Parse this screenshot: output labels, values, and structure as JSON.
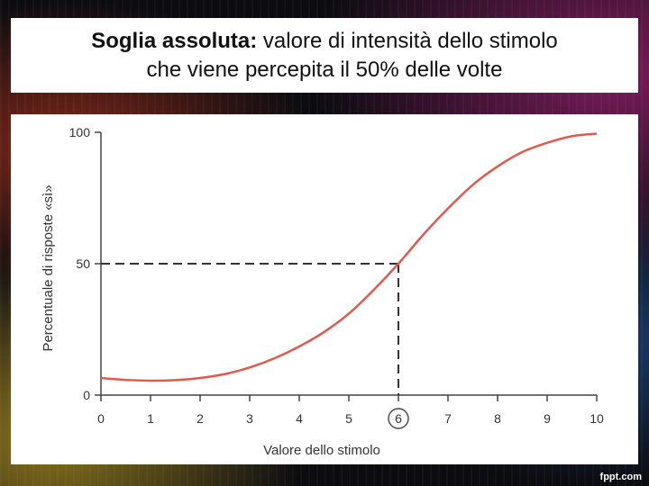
{
  "slide": {
    "title_bold": "Soglia assoluta:",
    "title_rest": " valore di intensità dello stimolo",
    "title_line2": "che viene percepita il 50% delle volte"
  },
  "chart_data": {
    "type": "line",
    "xlabel": "Valore dello stimolo",
    "ylabel": "Percentuale di risposte «sì»",
    "xlim": [
      0,
      10
    ],
    "ylim": [
      0,
      100
    ],
    "x_ticks": [
      "0",
      "1",
      "2",
      "3",
      "4",
      "5",
      "6",
      "7",
      "8",
      "9",
      "10"
    ],
    "y_ticks": [
      "0",
      "50",
      "100"
    ],
    "highlighted_x": 6,
    "reference_y": 50,
    "line_color": "#e05a4e",
    "series": [
      {
        "x": [
          0,
          0.5,
          1,
          1.5,
          2,
          2.5,
          3,
          3.5,
          4,
          4.5,
          5,
          5.5,
          6,
          6.5,
          7,
          7.5,
          8,
          8.5,
          9,
          9.5,
          10
        ],
        "y": [
          6.5,
          5.8,
          5.5,
          5.7,
          6.5,
          8,
          10.5,
          14,
          18.5,
          24,
          31,
          40,
          50,
          61,
          71,
          80,
          87,
          92.5,
          96,
          98.5,
          99.5
        ]
      }
    ]
  },
  "footer": {
    "watermark": "fppt.com"
  }
}
